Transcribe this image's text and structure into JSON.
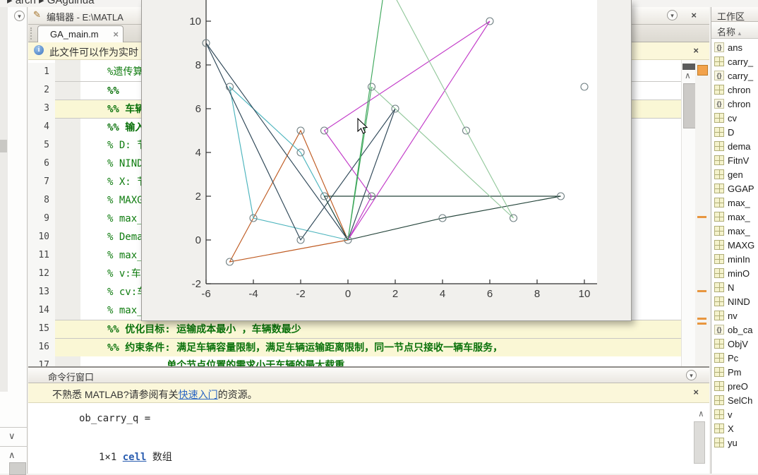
{
  "breadcrumb": {
    "text": "▸ arch ▸ GAguihua"
  },
  "icons": {
    "menu_chevron": "▾",
    "pencil": "✎",
    "close": "×",
    "info": "i",
    "up_chevron": "∧",
    "down_chevron": "∨",
    "sort_asc": "▴"
  },
  "editor": {
    "title": "编辑器 - E:\\MATLA",
    "tab_label": "GA_main.m",
    "info_text": "此文件可以作为实时",
    "lines": [
      {
        "num": "1",
        "text": "%遗传算法",
        "bold": false,
        "hl": false,
        "sec": false
      },
      {
        "num": "2",
        "text": "%%",
        "bold": true,
        "hl": false,
        "sec": true
      },
      {
        "num": "3",
        "text": "%% 车辆路",
        "bold": true,
        "hl": true,
        "sec": true
      },
      {
        "num": "4",
        "text": "%% 输入数",
        "bold": true,
        "hl": false,
        "sec": true
      },
      {
        "num": "5",
        "text": "% D: 节点",
        "bold": false,
        "hl": false,
        "sec": false
      },
      {
        "num": "6",
        "text": "% NIND:",
        "bold": false,
        "hl": false,
        "sec": false
      },
      {
        "num": "7",
        "text": "% X: 节点",
        "bold": false,
        "hl": false,
        "sec": false
      },
      {
        "num": "8",
        "text": "% MAXGEN:",
        "bold": false,
        "hl": false,
        "sec": false
      },
      {
        "num": "9",
        "text": "% max_vc:",
        "bold": false,
        "hl": false,
        "sec": false
      },
      {
        "num": "10",
        "text": "% Demand:",
        "bold": false,
        "hl": false,
        "sec": false
      },
      {
        "num": "11",
        "text": "% max_d:车",
        "bold": false,
        "hl": false,
        "sec": false
      },
      {
        "num": "12",
        "text": "% v:车辆运",
        "bold": false,
        "hl": false,
        "sec": false
      },
      {
        "num": "13",
        "text": "% cv:车辆",
        "bold": false,
        "hl": false,
        "sec": false
      },
      {
        "num": "14",
        "text": "% max_v:",
        "bold": false,
        "hl": false,
        "sec": false
      },
      {
        "num": "15",
        "text": "%% 优化目标: 运输成本最小 ，车辆数最少",
        "bold": true,
        "hl": true,
        "sec": true
      },
      {
        "num": "16",
        "text": "%% 约束条件: 满足车辆容量限制，满足车辆运输距离限制，同一节点只接收一辆车服务，",
        "bold": true,
        "hl": true,
        "sec": true
      },
      {
        "num": "17",
        "text": "          单个节点位置的需求小于车辆的最大载重",
        "bold": true,
        "hl": false,
        "sec": false
      }
    ]
  },
  "chart_data": {
    "type": "line",
    "title": "",
    "xlabel": "",
    "ylabel": "",
    "xlim": [
      -6,
      10.5
    ],
    "ylim": [
      -2,
      11.7
    ],
    "xticks": [
      -6,
      -4,
      -2,
      0,
      2,
      4,
      6,
      8,
      10
    ],
    "yticks": [
      -2,
      0,
      2,
      4,
      6,
      8,
      10
    ],
    "grid": false,
    "legend": "none",
    "marker": "hollow-circle",
    "nodes": [
      [
        -6,
        9
      ],
      [
        -5,
        7
      ],
      [
        -5,
        -1
      ],
      [
        -4,
        1
      ],
      [
        -2,
        5
      ],
      [
        -2,
        4
      ],
      [
        -2,
        0
      ],
      [
        -1,
        2
      ],
      [
        -1,
        5
      ],
      [
        0,
        0
      ],
      [
        1,
        7
      ],
      [
        1,
        2
      ],
      [
        2,
        6
      ],
      [
        4,
        1
      ],
      [
        5,
        5
      ],
      [
        6,
        10
      ],
      [
        7,
        1
      ],
      [
        9,
        2
      ],
      [
        10,
        7
      ]
    ],
    "series": [
      {
        "name": "route-orange",
        "color": "#bf5b22",
        "points": [
          [
            0,
            0
          ],
          [
            -5,
            -1
          ],
          [
            -4,
            1
          ],
          [
            -2,
            5
          ],
          [
            0,
            0
          ]
        ]
      },
      {
        "name": "route-cyan",
        "color": "#4cb4bd",
        "points": [
          [
            0,
            0
          ],
          [
            -4,
            1
          ],
          [
            -5,
            7
          ],
          [
            -2,
            4
          ],
          [
            0,
            0
          ]
        ]
      },
      {
        "name": "route-darkblue",
        "color": "#2f4858",
        "points": [
          [
            0,
            0
          ],
          [
            -6,
            9
          ],
          [
            -2,
            0
          ],
          [
            2,
            6
          ],
          [
            0,
            0
          ]
        ]
      },
      {
        "name": "route-darkgreen",
        "color": "#24443a",
        "points": [
          [
            0,
            0
          ],
          [
            -1,
            2
          ],
          [
            9,
            2
          ],
          [
            4,
            1
          ],
          [
            0,
            0
          ]
        ]
      },
      {
        "name": "route-magenta",
        "color": "#c23ac8",
        "points": [
          [
            0,
            0
          ],
          [
            1,
            2
          ],
          [
            -1,
            5
          ],
          [
            6,
            10
          ],
          [
            0,
            0
          ]
        ]
      },
      {
        "name": "route-green",
        "color": "#3fa85c",
        "points": [
          [
            1,
            7
          ],
          [
            0,
            0
          ],
          [
            1.55,
            11.6
          ]
        ]
      },
      {
        "name": "route-lightgreen",
        "color": "#93c89c",
        "points": [
          [
            1,
            7
          ],
          [
            7,
            1
          ],
          [
            5,
            5
          ],
          [
            1.75,
            11.6
          ]
        ]
      }
    ],
    "colors": {
      "plot_bg": "#ffffff",
      "figure_bg": "#f1f0ed",
      "axis": "#2f2f2f",
      "tick_label": "#3a3a3a",
      "node": "#6f7f82"
    }
  },
  "command_window": {
    "title": "命令行窗口",
    "notice_pre": "不熟悉 MATLAB?请参阅有关",
    "notice_link": "快速入门",
    "notice_post": "的资源。",
    "output_line1": "ob_carry_q =",
    "output_size": "1×1 ",
    "output_link": "cell",
    "output_suffix": " 数组"
  },
  "workspace": {
    "title": "工作区",
    "name_header": "名称",
    "items": [
      {
        "icon": "cell",
        "name": "ans"
      },
      {
        "icon": "grid",
        "name": "carry_"
      },
      {
        "icon": "cell",
        "name": "carry_"
      },
      {
        "icon": "grid",
        "name": "chron"
      },
      {
        "icon": "cell",
        "name": "chron"
      },
      {
        "icon": "grid",
        "name": "cv"
      },
      {
        "icon": "grid",
        "name": "D"
      },
      {
        "icon": "grid",
        "name": "dema"
      },
      {
        "icon": "grid",
        "name": "FitnV"
      },
      {
        "icon": "grid",
        "name": "gen"
      },
      {
        "icon": "grid",
        "name": "GGAP"
      },
      {
        "icon": "grid",
        "name": "max_"
      },
      {
        "icon": "grid",
        "name": "max_"
      },
      {
        "icon": "grid",
        "name": "max_"
      },
      {
        "icon": "grid",
        "name": "MAXG"
      },
      {
        "icon": "grid",
        "name": "minIn"
      },
      {
        "icon": "grid",
        "name": "minO"
      },
      {
        "icon": "grid",
        "name": "N"
      },
      {
        "icon": "grid",
        "name": "NIND"
      },
      {
        "icon": "grid",
        "name": "nv"
      },
      {
        "icon": "cell",
        "name": "ob_ca"
      },
      {
        "icon": "grid",
        "name": "ObjV"
      },
      {
        "icon": "grid",
        "name": "Pc"
      },
      {
        "icon": "grid",
        "name": "Pm"
      },
      {
        "icon": "grid",
        "name": "preO"
      },
      {
        "icon": "grid",
        "name": "SelCh"
      },
      {
        "icon": "grid",
        "name": "v"
      },
      {
        "icon": "grid",
        "name": "X"
      },
      {
        "icon": "grid",
        "name": "yu"
      }
    ]
  }
}
